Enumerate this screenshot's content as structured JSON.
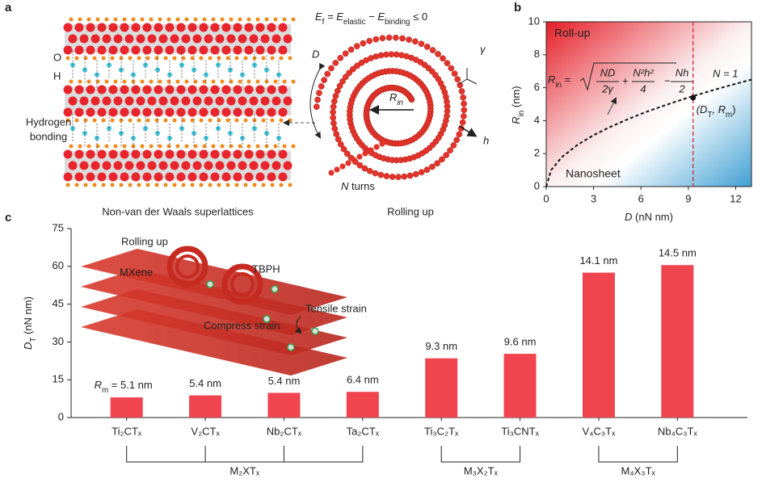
{
  "panel_labels": [
    "a",
    "b",
    "c"
  ],
  "panel_a": {
    "equation": [
      "E",
      "f",
      " = E",
      "elastic",
      " − E",
      "binding",
      " ≤ 0"
    ],
    "o_label": "O",
    "h_label": "H",
    "hbond": [
      "Hydrogen",
      "bonding"
    ],
    "caption_left": "Non-van der Waals superlattices",
    "caption_right": "Rolling up",
    "d_label": "D",
    "gamma": "γ",
    "h": "h",
    "n_turns": [
      "N",
      " turns"
    ],
    "rin": [
      "R",
      "in"
    ]
  },
  "chart_data": [
    {
      "type": "line",
      "x_label": [
        "D",
        " (nN nm)"
      ],
      "y_label": [
        "R",
        "in",
        " (nm)"
      ],
      "x": [
        0,
        0.3,
        1,
        2,
        3,
        4,
        5,
        6,
        7,
        8,
        9,
        10,
        11,
        12,
        13
      ],
      "values": [
        0,
        0.99,
        1.8,
        2.55,
        3.12,
        3.6,
        4.02,
        4.41,
        4.76,
        5.09,
        5.4,
        5.69,
        5.97,
        6.24,
        6.49
      ],
      "color": "#111111",
      "vline": 9.3,
      "vline_color": "#d6262e",
      "marker": {
        "x": 9.3,
        "y": 5.4,
        "label": [
          "(D",
          "T",
          ", R",
          "m",
          ")"
        ]
      },
      "regions": [
        "Roll-up",
        "Nanosheet"
      ],
      "curve_label": "N = 1",
      "formula": [
        "R",
        "in",
        " = ",
        "ND",
        "2γ",
        "+",
        "N²h²",
        "4",
        "−",
        "Nh",
        "2"
      ],
      "xlim": [
        0,
        13
      ],
      "xticks": [
        0,
        3,
        6,
        9,
        12
      ],
      "ylim": [
        0,
        10
      ],
      "yticks": [
        0,
        2,
        4,
        6,
        8,
        10
      ]
    },
    {
      "type": "bar",
      "y_label": [
        "D",
        "T",
        " (nN nm)"
      ],
      "categories": [
        "Ti₂CTₓ",
        "V₂CTₓ",
        "Nb₂CTₓ",
        "Ta₂CTₓ",
        "Ti₃C₂Tₓ",
        "Ti₃CNTₓ",
        "V₄C₃Tₓ",
        "Nb₄C₃Tₓ"
      ],
      "values": [
        8,
        8.8,
        9.8,
        10.2,
        23.5,
        25.3,
        57.5,
        60.5
      ],
      "color": "#f0454f",
      "annotation_prefix": [
        "R",
        "m",
        " = "
      ],
      "annotations": [
        "5.1 nm",
        "5.4 nm",
        "5.4 nm",
        "6.4 nm",
        "9.3 nm",
        "9.6 nm",
        "14.1 nm",
        "14.5 nm"
      ],
      "groups": [
        "M₂XTₓ",
        "M₃X₂Tₓ",
        "M₄X₃Tₓ"
      ],
      "inset": [
        "Rolling up",
        "MXene",
        "TBPH",
        "Tensile strain",
        "Compress strain"
      ],
      "ylim": [
        0,
        75
      ],
      "yticks": [
        0,
        15,
        30,
        45,
        60,
        75
      ]
    }
  ]
}
